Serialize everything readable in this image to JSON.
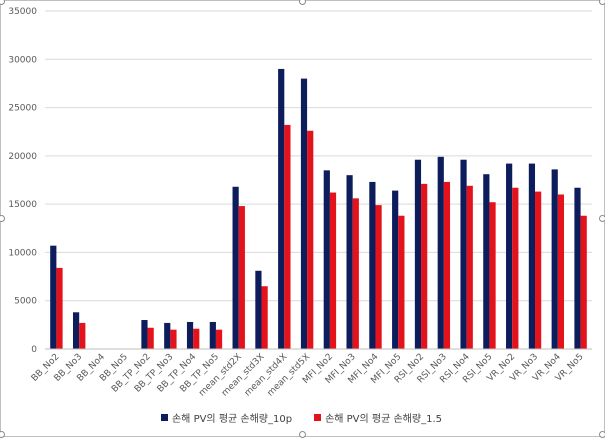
{
  "colors": {
    "series1": "#0d1d5c",
    "series2": "#e4121a",
    "grid": "#d9d9d9",
    "axis": "#bfbfbf"
  },
  "legend": {
    "series1_label": "손해 PV의 평균 손해량_10p",
    "series2_label": "손해 PV의 평균 손해량_1.5"
  },
  "chart_data": {
    "type": "bar",
    "categories": [
      "BB_No2",
      "BB_No3",
      "BB_No4",
      "BB_No5",
      "BB_TP_No2",
      "BB_TP_No3",
      "BB_TP_No4",
      "BB_TP_No5",
      "mean_std2X",
      "mean_std3X",
      "mean_std4X",
      "mean_std5X",
      "MFI_No2",
      "MFI_No3",
      "MFI_No4",
      "MFI_No5",
      "RSI_No2",
      "RSI_No3",
      "RSI_No4",
      "RSI_No5",
      "VR_No2",
      "VR_No3",
      "VR_No4",
      "VR_No5"
    ],
    "series": [
      {
        "name": "손해 PV의 평균 손해량_10p",
        "values": [
          10700,
          3800,
          0,
          0,
          3000,
          2700,
          2800,
          2800,
          16800,
          8100,
          29000,
          28000,
          18500,
          18000,
          17300,
          16400,
          19600,
          19900,
          19600,
          18100,
          19200,
          19200,
          18600,
          16700
        ]
      },
      {
        "name": "손해 PV의 평균 손해량_1.5",
        "values": [
          8400,
          2700,
          0,
          0,
          2200,
          2000,
          2100,
          2000,
          14800,
          6500,
          23200,
          22600,
          16200,
          15600,
          14900,
          13800,
          17100,
          17300,
          16900,
          15200,
          16700,
          16300,
          16000,
          13800
        ]
      }
    ],
    "yticks": [
      "0",
      "5000",
      "10000",
      "15000",
      "20000",
      "25000",
      "30000",
      "35000"
    ],
    "ylim": [
      0,
      35000
    ],
    "grid": true,
    "legend_position": "bottom"
  }
}
